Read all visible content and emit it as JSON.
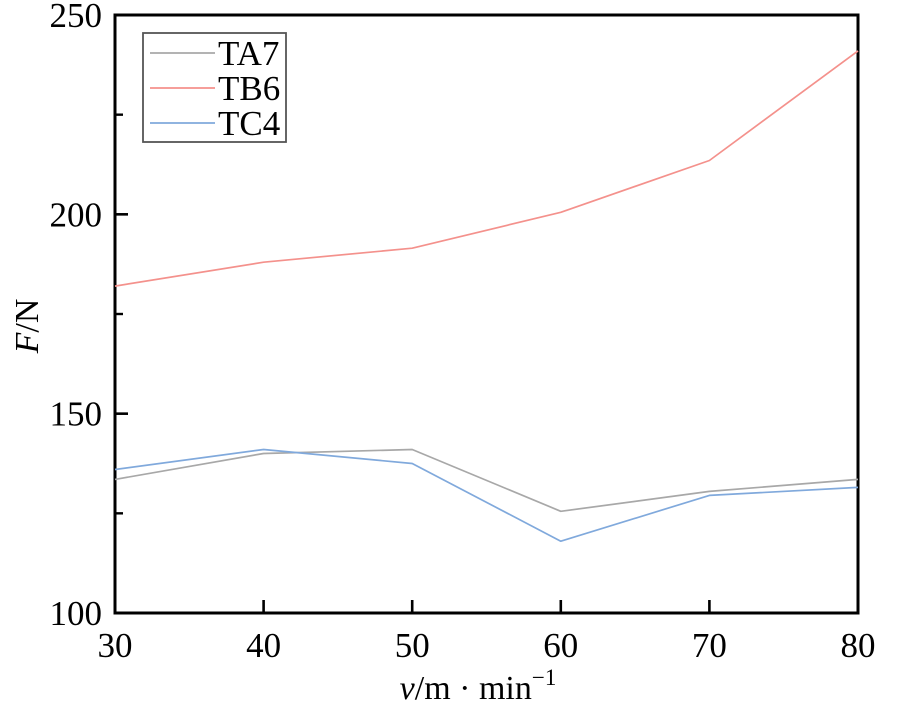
{
  "chart_data": {
    "type": "line",
    "x": [
      30,
      40,
      50,
      60,
      70,
      80
    ],
    "series": [
      {
        "name": "TA7",
        "color": "#a8a8a8",
        "values": [
          133.5,
          140,
          141,
          125.5,
          130.5,
          133.5
        ]
      },
      {
        "name": "TB6",
        "color": "#f4918c",
        "values": [
          182,
          188,
          191.5,
          200.5,
          213.5,
          241
        ]
      },
      {
        "name": "TC4",
        "color": "#80a9dc",
        "values": [
          136,
          141,
          137.5,
          118,
          129.5,
          131.5
        ]
      }
    ],
    "xlabel": {
      "italic": "v",
      "unit": "/m · min",
      "exponent": "−1"
    },
    "ylabel": {
      "italic": "F",
      "rest": "/N"
    },
    "xlim": [
      30,
      80
    ],
    "ylim": [
      100,
      250
    ],
    "x_ticks": [
      30,
      40,
      50,
      60,
      70,
      80
    ],
    "y_ticks_major": [
      100,
      150,
      200,
      250
    ],
    "y_ticks_minor": [
      125,
      175,
      225
    ],
    "grid": false,
    "legend_position": "upper-left",
    "frame_color": "#000000",
    "legend_border_color": "#555555",
    "background": "#ffffff"
  }
}
